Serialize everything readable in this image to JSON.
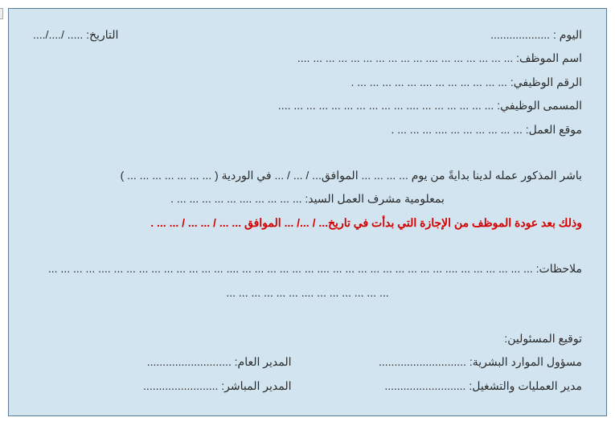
{
  "colors": {
    "page_bg": "#d2e4f0",
    "border": "#5a7a95",
    "text": "#2a2a2a",
    "highlight": "#d40000"
  },
  "top": {
    "day_label": "اليوم :",
    "day_dots": "...................",
    "date_label": "التاريخ:",
    "date_dots": "..... /..../...."
  },
  "fields": {
    "name_label": "اسم الموظف:",
    "name_dots": "... ... ... ... ... ... .... ... ... ... ... ... ... ... ... ... ....",
    "job_id_label": "الرقم الوظيفي:",
    "job_id_dots": "... ... ... ... ... ... .... ... ... ... ... ...  .",
    "job_title_label": "المسمى الوظيفي:",
    "job_title_dots": "... ... ... ... ... ... .... ... ... ... ... ... ... ... ... ... ....",
    "work_loc_label": "موقع العمل:",
    "work_loc_dots": "... ... ... ... ... ... .... ... ... ... ."
  },
  "body": {
    "start_line": "باشر المذكور عمله لدينا بدايةً من يوم ... ... ... ... الموافق... /  ... / ...  في الوردية ( ... ... ... ... ... ... ... )",
    "supervisor_line": "بمعلومية مشرف العمل السيد: ... ... ... ... .... ... ... ... ... ...  .",
    "red_line": "وذلك بعد عودة الموظف من الإجازة التي بدأت في تاريخ... / .../ ... الموافق ... ... /  ... ... / ... ... ."
  },
  "notes": {
    "label": "ملاحظات:",
    "line1": "... ... ... ... ... ... .... ... ... ... ... ... ... ... ... ... .... ... ... ... ... ... ... .... ... ... ... ... ... ... ... ... ... .... ... ... ... ...",
    "line2": "... ... ... ... ... ... .... ... ... ... ... ... ..."
  },
  "signatures": {
    "heading": "توقيع المسئولين:",
    "hr_label": "مسؤول الموارد البشرية:",
    "hr_dots": "............................",
    "gm_label": "المدير العام:",
    "gm_dots": "...........................",
    "ops_label": "مدير العمليات والتشغيل:",
    "ops_dots": "..........................",
    "direct_label": "المدير المباشر:",
    "direct_dots": "........................"
  }
}
